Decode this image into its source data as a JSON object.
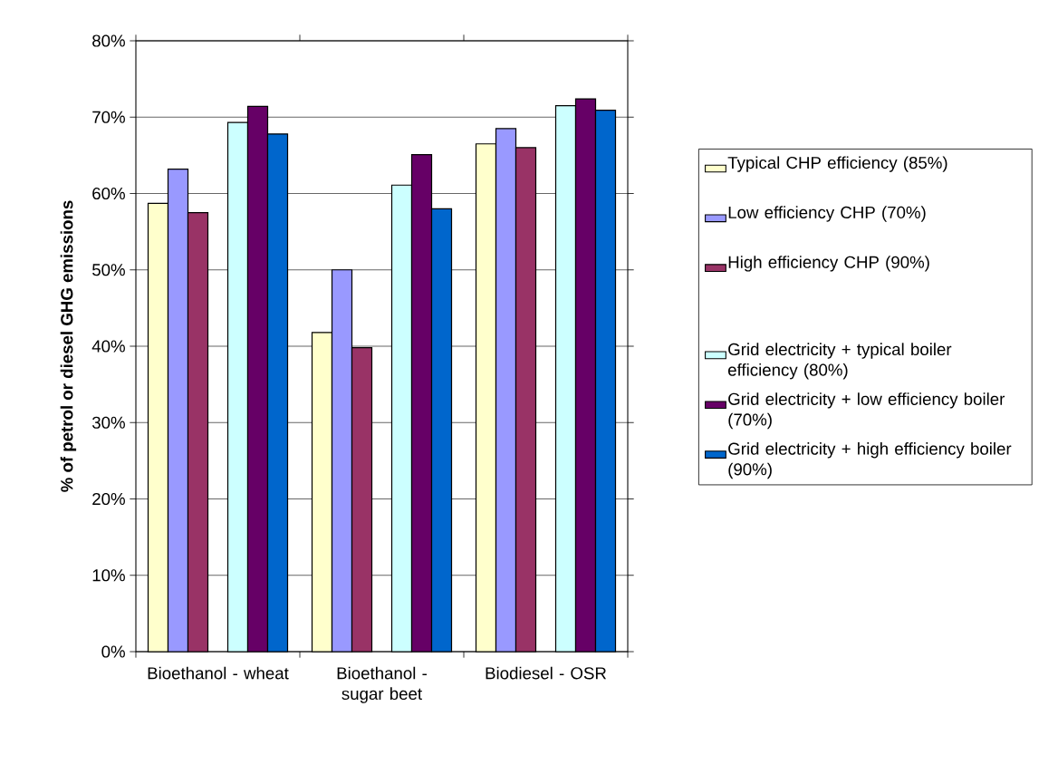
{
  "chart_data": {
    "type": "bar",
    "ylabel": "% of petrol or diesel GHG emissions",
    "categories": [
      "Bioethanol - wheat",
      "Bioethanol - sugar beet",
      "Biodiesel - OSR"
    ],
    "series": [
      {
        "name": "Typical CHP efficiency (85%)",
        "color": "#ffffcc",
        "values": [
          58.7,
          41.8,
          66.5
        ]
      },
      {
        "name": "Low efficiency CHP (70%)",
        "color": "#9999ff",
        "values": [
          63.2,
          50.0,
          68.5
        ]
      },
      {
        "name": "High efficiency CHP (90%)",
        "color": "#993366",
        "values": [
          57.5,
          39.8,
          66.0
        ]
      },
      {
        "values": [
          null,
          null,
          null
        ]
      },
      {
        "name": "Grid electricity + typical boiler efficiency (80%)",
        "color": "#ccffff",
        "values": [
          69.3,
          61.1,
          71.5
        ]
      },
      {
        "name": "Grid electricity + low efficiency boiler (70%)",
        "color": "#660066",
        "values": [
          71.4,
          65.1,
          72.4
        ]
      },
      {
        "name": "Grid electricity + high efficiency boiler (90%)",
        "color": "#0066cc",
        "values": [
          67.8,
          58.0,
          70.9
        ]
      }
    ],
    "ylim": [
      0,
      80
    ],
    "yticks": [
      {
        "value": 0,
        "label": "0%"
      },
      {
        "value": 10,
        "label": "10%"
      },
      {
        "value": 20,
        "label": "20%"
      },
      {
        "value": 30,
        "label": "30%"
      },
      {
        "value": 40,
        "label": "40%"
      },
      {
        "value": 50,
        "label": "50%"
      },
      {
        "value": 60,
        "label": "60%"
      },
      {
        "value": 70,
        "label": "70%"
      },
      {
        "value": 80,
        "label": "80%"
      }
    ],
    "grid": "y",
    "legend": "right"
  }
}
